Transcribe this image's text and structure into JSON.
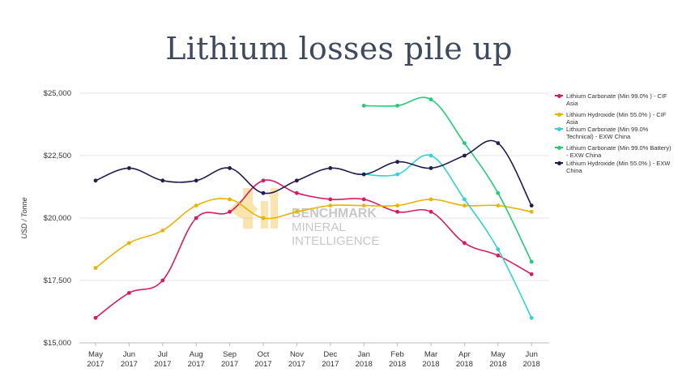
{
  "chart_data": {
    "type": "line",
    "title": "Lithium losses pile up",
    "ylabel": "USD / Tonne",
    "xlabel": "",
    "ylim": [
      15000,
      25000
    ],
    "yticks": [
      15000,
      17500,
      20000,
      22500,
      25000
    ],
    "ytick_labels": [
      "$15,000",
      "$17,500",
      "$20,000",
      "$22,500",
      "$25,000"
    ],
    "categories": [
      [
        "May",
        "2017"
      ],
      [
        "Jun",
        "2017"
      ],
      [
        "Jul",
        "2017"
      ],
      [
        "Aug",
        "2017"
      ],
      [
        "Sep",
        "2017"
      ],
      [
        "Oct",
        "2017"
      ],
      [
        "Nov",
        "2017"
      ],
      [
        "Dec",
        "2017"
      ],
      [
        "Jan",
        "2018"
      ],
      [
        "Feb",
        "2018"
      ],
      [
        "Mar",
        "2018"
      ],
      [
        "Apr",
        "2018"
      ],
      [
        "May",
        "2018"
      ],
      [
        "Jun",
        "2018"
      ]
    ],
    "grid": "horizontal",
    "legend_position": "right",
    "series": [
      {
        "name": "Lithium Carbonate (Min 99.0% ) - CIF Asia",
        "color": "#d81b60",
        "values": [
          16000,
          17000,
          17500,
          20000,
          20250,
          21500,
          21000,
          20750,
          20750,
          20250,
          20250,
          19000,
          18500,
          17750
        ]
      },
      {
        "name": "Lithium Hydroxide (Min 55.0% ) - CIF Asia",
        "color": "#e8b400",
        "values": [
          18000,
          19000,
          19500,
          20500,
          20750,
          20000,
          20250,
          20500,
          20500,
          20500,
          20750,
          20500,
          20500,
          20250
        ]
      },
      {
        "name": "Lithium Carbonate (Min 99.0% Technical) - EXW China",
        "color": "#2fd3d3",
        "values": [
          null,
          null,
          null,
          null,
          null,
          null,
          null,
          null,
          21750,
          21750,
          22500,
          20750,
          18750,
          16000
        ]
      },
      {
        "name": "Lithium Carbonate (Min 99.0% Battery) - EXW China",
        "color": "#22cc77",
        "values": [
          null,
          null,
          null,
          null,
          null,
          null,
          null,
          null,
          24500,
          24500,
          24750,
          23000,
          21000,
          18250
        ]
      },
      {
        "name": "Lithium Hydroxide (Min 55.0% ) - EXW China",
        "color": "#1f1d4e",
        "values": [
          21500,
          22000,
          21500,
          21500,
          22000,
          21000,
          21500,
          22000,
          21750,
          22250,
          22000,
          22500,
          23000,
          20500
        ]
      }
    ]
  },
  "watermark": {
    "line1": "BENCHMARK",
    "line2": "MINERAL",
    "line3": "INTELLIGENCE",
    "color": "#f3b41b"
  }
}
